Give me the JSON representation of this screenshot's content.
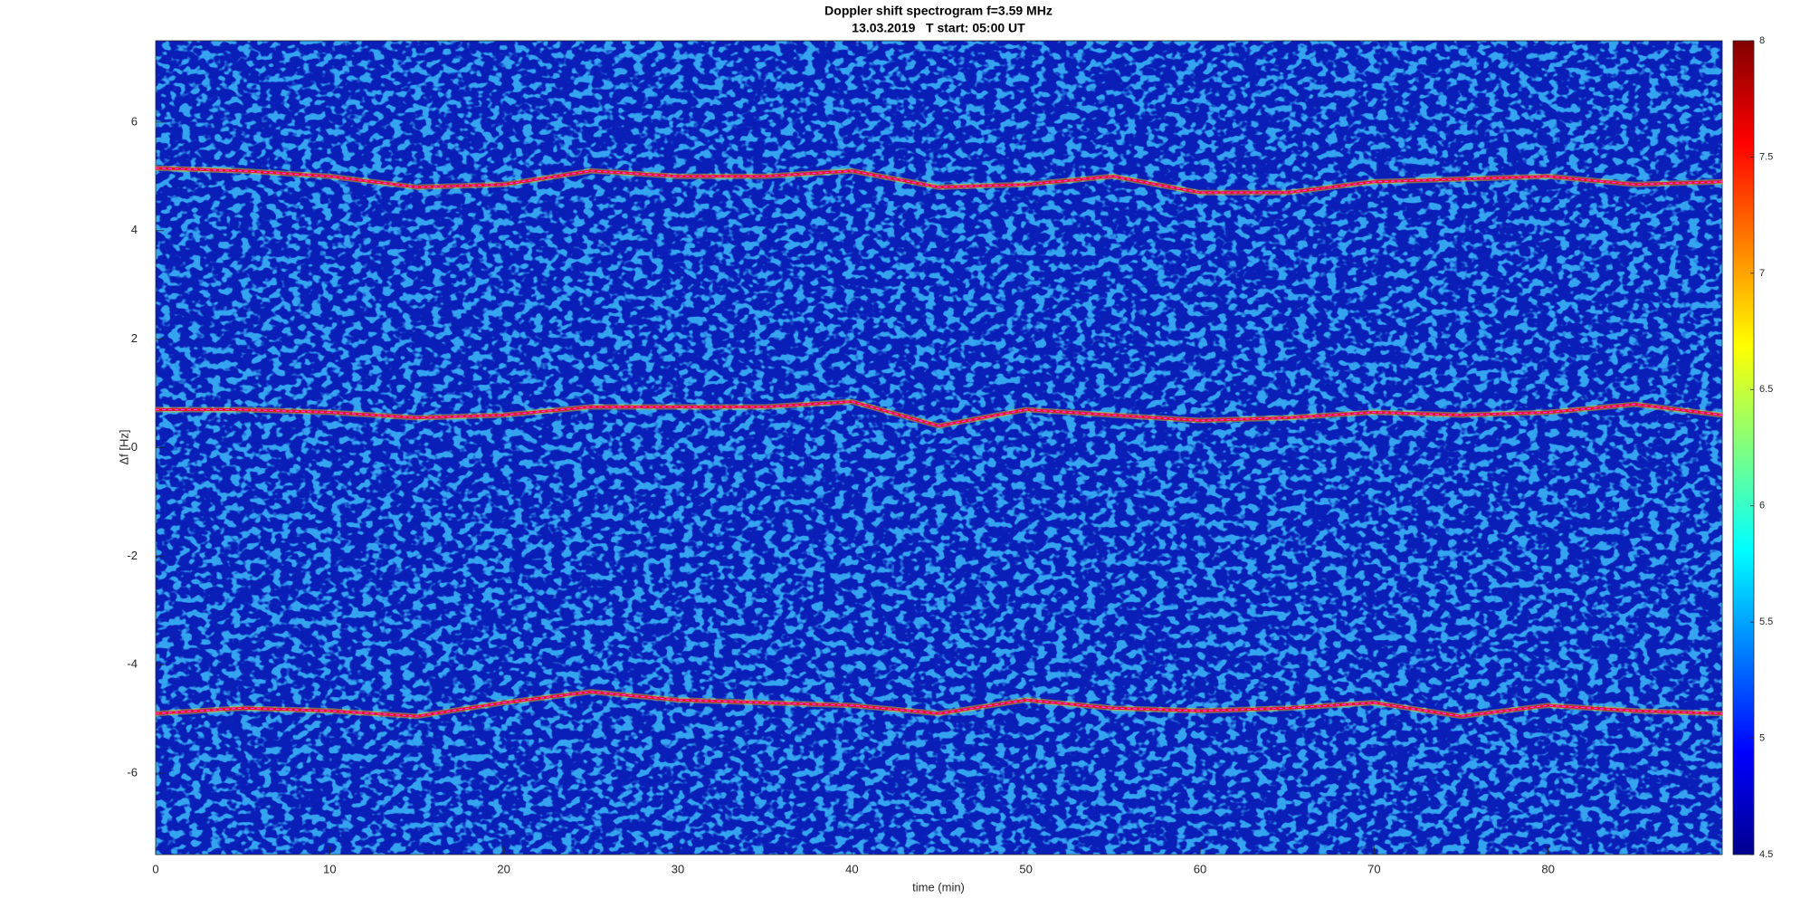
{
  "chart_data": {
    "type": "spectrogram",
    "title": "Doppler shift spectrogram f=3.59 MHz",
    "subtitle": "13.03.2019   T start: 05:00 UT",
    "xlabel": "time (min)",
    "ylabel": "Δf [Hz]",
    "xlim": [
      0,
      90
    ],
    "xticks": [
      0,
      10,
      20,
      30,
      40,
      50,
      60,
      70,
      80
    ],
    "ylim": [
      -7.5,
      7.5
    ],
    "yticks": [
      -6,
      -4,
      -2,
      0,
      2,
      4,
      6
    ],
    "colormap": "jet",
    "clim": [
      4.5,
      8
    ],
    "cticks": [
      4.5,
      5,
      5.5,
      6,
      6.5,
      7,
      7.5,
      8
    ],
    "x": [
      0,
      5,
      10,
      15,
      20,
      25,
      30,
      35,
      40,
      45,
      50,
      55,
      60,
      65,
      70,
      75,
      80,
      85,
      90
    ],
    "series": [
      {
        "color": "#e8102a",
        "values": [
          5.15,
          5.1,
          5.0,
          4.8,
          4.85,
          5.1,
          5.0,
          5.0,
          5.1,
          4.8,
          4.85,
          5.0,
          4.7,
          4.7,
          4.9,
          4.95,
          5.0,
          4.85,
          4.9
        ]
      },
      {
        "color": "#e8102a",
        "values": [
          0.7,
          0.7,
          0.65,
          0.55,
          0.6,
          0.75,
          0.75,
          0.75,
          0.85,
          0.4,
          0.7,
          0.6,
          0.5,
          0.55,
          0.65,
          0.6,
          0.65,
          0.8,
          0.6
        ]
      },
      {
        "color": "#e8102a",
        "values": [
          -4.9,
          -4.8,
          -4.85,
          -4.95,
          -4.7,
          -4.5,
          -4.65,
          -4.7,
          -4.75,
          -4.9,
          -4.65,
          -4.8,
          -4.85,
          -4.8,
          -4.7,
          -4.95,
          -4.75,
          -4.85,
          -4.9
        ]
      }
    ]
  }
}
